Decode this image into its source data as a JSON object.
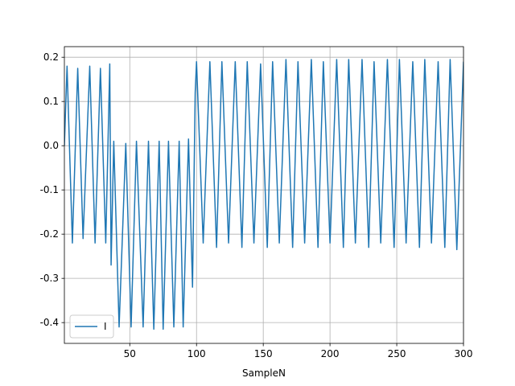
{
  "chart_data": {
    "type": "line",
    "xlabel": "SampleN",
    "xlim": [
      1,
      300
    ],
    "ylim": [
      -0.447,
      0.224
    ],
    "xticks": [
      50,
      100,
      150,
      200,
      250,
      300
    ],
    "yticks": [
      -0.4,
      -0.3,
      -0.2,
      -0.1,
      {
        "value": 0,
        "label": "0.0"
      },
      0.1,
      0.2
    ],
    "grid": true,
    "legend": "lower left",
    "x": [
      1,
      3,
      7,
      11,
      15,
      20,
      24,
      28,
      32,
      35,
      36,
      38,
      42,
      47,
      51,
      55,
      60,
      64,
      68,
      72,
      75,
      79,
      83,
      87,
      90,
      94,
      97,
      99,
      100,
      105,
      110,
      115,
      119,
      124,
      129,
      134,
      138,
      143,
      148,
      153,
      157,
      162,
      167,
      172,
      176,
      181,
      186,
      191,
      195,
      200,
      205,
      210,
      214,
      219,
      224,
      229,
      233,
      238,
      243,
      248,
      252,
      257,
      262,
      267,
      271,
      276,
      281,
      286,
      290,
      295,
      300
    ],
    "series": [
      {
        "name": "I",
        "color": "#1f77b4",
        "values": [
          0,
          0.18,
          -0.22,
          0.175,
          -0.21,
          0.18,
          -0.22,
          0.175,
          -0.22,
          0.185,
          -0.27,
          0.01,
          -0.41,
          0.005,
          -0.41,
          0.01,
          -0.41,
          0.01,
          -0.415,
          0.01,
          -0.415,
          0.01,
          -0.41,
          0.01,
          -0.41,
          0.015,
          -0.32,
          0.12,
          0.19,
          -0.22,
          0.19,
          -0.23,
          0.19,
          -0.22,
          0.19,
          -0.23,
          0.19,
          -0.22,
          0.185,
          -0.23,
          0.19,
          -0.22,
          0.195,
          -0.23,
          0.19,
          -0.22,
          0.195,
          -0.23,
          0.19,
          -0.22,
          0.195,
          -0.23,
          0.195,
          -0.22,
          0.195,
          -0.23,
          0.19,
          -0.22,
          0.195,
          -0.23,
          0.195,
          -0.22,
          0.19,
          -0.23,
          0.195,
          -0.22,
          0.19,
          -0.23,
          0.195,
          -0.235,
          0.19
        ]
      }
    ]
  }
}
